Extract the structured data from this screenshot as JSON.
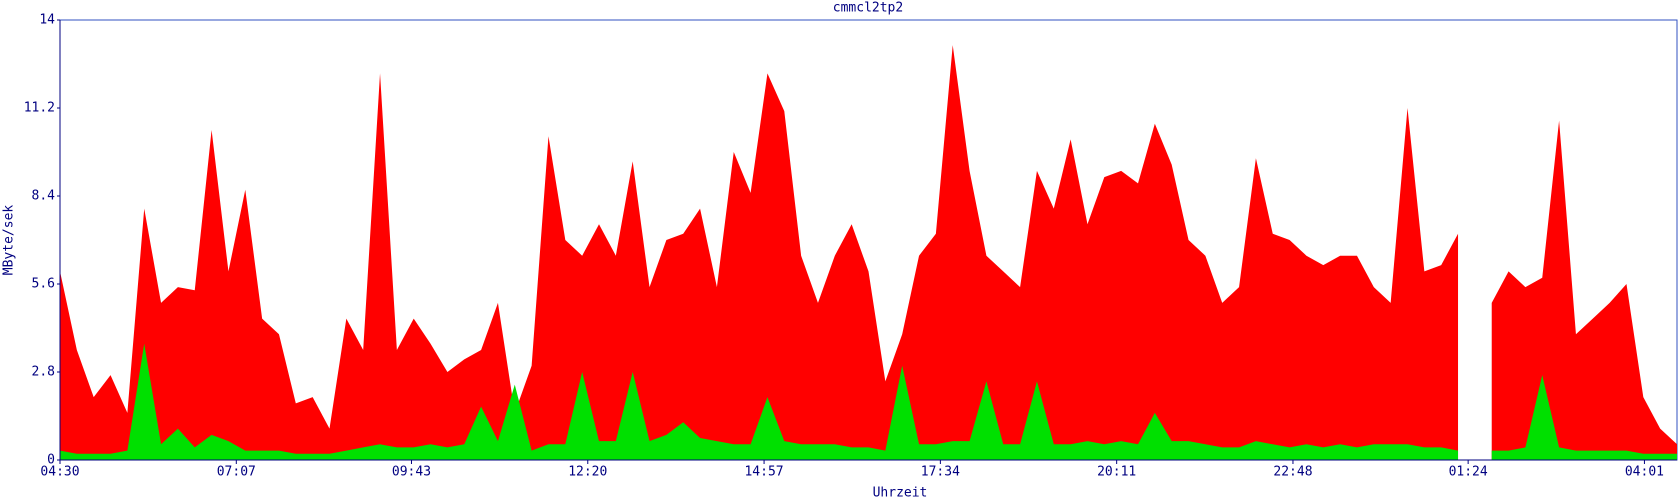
{
  "chart_data": {
    "type": "area",
    "title": "cmmcl2tp2",
    "x_label": "Uhrzeit",
    "y_label": "MByte/sek",
    "x": [
      0,
      15,
      30,
      45,
      60,
      75,
      90,
      105,
      120,
      135,
      150,
      165,
      180,
      195,
      210,
      225,
      240,
      255,
      270,
      285,
      300,
      315,
      330,
      345,
      360,
      375,
      390,
      405,
      420,
      435,
      450,
      465,
      480,
      495,
      510,
      525,
      540,
      555,
      570,
      585,
      600,
      615,
      630,
      645,
      660,
      675,
      690,
      705,
      720,
      735,
      750,
      765,
      780,
      795,
      810,
      825,
      840,
      855,
      870,
      885,
      900,
      915,
      930,
      945,
      960,
      975,
      990,
      1005,
      1020,
      1035,
      1050,
      1065,
      1080,
      1095,
      1110,
      1125,
      1140,
      1155,
      1170,
      1185,
      1200,
      1215,
      1230,
      1245,
      1260,
      1275,
      1290,
      1305,
      1320,
      1335,
      1350,
      1365,
      1380,
      1395,
      1410,
      1425,
      1440
    ],
    "series": [
      {
        "color": "#ff0000",
        "values": [
          6.0,
          3.5,
          2.0,
          2.7,
          1.5,
          8.0,
          5.0,
          5.5,
          5.4,
          10.5,
          6.0,
          8.6,
          4.5,
          4.0,
          1.8,
          2.0,
          1.0,
          4.5,
          3.5,
          12.3,
          3.5,
          4.5,
          3.7,
          2.8,
          3.2,
          3.5,
          5.0,
          1.5,
          3.0,
          10.3,
          7.0,
          6.5,
          7.5,
          6.5,
          9.5,
          5.5,
          7.0,
          7.2,
          8.0,
          5.5,
          9.8,
          8.5,
          12.3,
          11.1,
          6.5,
          5.0,
          6.5,
          7.5,
          6.0,
          2.5,
          4.0,
          6.5,
          7.2,
          13.2,
          9.2,
          6.5,
          6.0,
          5.5,
          9.2,
          8.0,
          10.2,
          7.5,
          9.0,
          9.2,
          8.8,
          10.7,
          9.4,
          7.0,
          6.5,
          5.0,
          5.5,
          9.6,
          7.2,
          7.0,
          6.5,
          6.2,
          6.5,
          6.5,
          5.5,
          5.0,
          11.2,
          6.0,
          6.2,
          7.2,
          null,
          5.0,
          6.0,
          5.5,
          5.8,
          10.8,
          4.0,
          4.5,
          5.0,
          5.6,
          2.0,
          1.0,
          0.5
        ]
      },
      {
        "color": "#00e000",
        "values": [
          0.3,
          0.2,
          0.2,
          0.2,
          0.3,
          3.7,
          0.5,
          1.0,
          0.4,
          0.8,
          0.6,
          0.3,
          0.3,
          0.3,
          0.2,
          0.2,
          0.2,
          0.3,
          0.4,
          0.5,
          0.4,
          0.4,
          0.5,
          0.4,
          0.5,
          1.7,
          0.6,
          2.4,
          0.3,
          0.5,
          0.5,
          2.8,
          0.6,
          0.6,
          2.8,
          0.6,
          0.8,
          1.2,
          0.7,
          0.6,
          0.5,
          0.5,
          2.0,
          0.6,
          0.5,
          0.5,
          0.5,
          0.4,
          0.4,
          0.3,
          3.0,
          0.5,
          0.5,
          0.6,
          0.6,
          2.5,
          0.5,
          0.5,
          2.5,
          0.5,
          0.5,
          0.6,
          0.5,
          0.6,
          0.5,
          1.5,
          0.6,
          0.6,
          0.5,
          0.4,
          0.4,
          0.6,
          0.5,
          0.4,
          0.5,
          0.4,
          0.5,
          0.4,
          0.5,
          0.5,
          0.5,
          0.4,
          0.4,
          0.3,
          null,
          0.3,
          0.3,
          0.4,
          2.7,
          0.4,
          0.3,
          0.3,
          0.3,
          0.3,
          0.2,
          0.2,
          0.2
        ]
      }
    ],
    "xlim": [
      0,
      1440
    ],
    "xticks": [
      {
        "value": 0,
        "label": "04:30"
      },
      {
        "value": 157,
        "label": "07:07"
      },
      {
        "value": 313,
        "label": "09:43"
      },
      {
        "value": 470,
        "label": "12:20"
      },
      {
        "value": 627,
        "label": "14:57"
      },
      {
        "value": 784,
        "label": "17:34"
      },
      {
        "value": 941,
        "label": "20:11"
      },
      {
        "value": 1098,
        "label": "22:48"
      },
      {
        "value": 1254,
        "label": "01:24"
      },
      {
        "value": 1411,
        "label": "04:01"
      }
    ],
    "ylim": [
      0,
      14
    ],
    "yticks": [
      0,
      2.8,
      5.6,
      8.4,
      11.2,
      14
    ]
  }
}
